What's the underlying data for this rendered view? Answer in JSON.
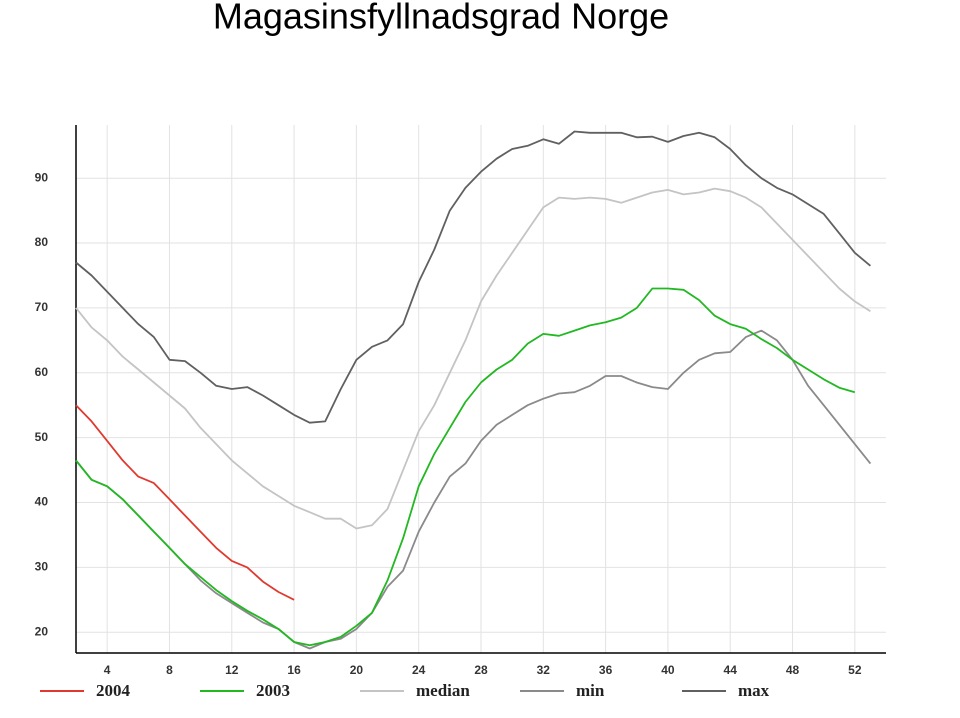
{
  "chart_data": {
    "type": "line",
    "title": "Magasinsfyllnadsgrad Norge",
    "x": [
      2,
      3,
      4,
      5,
      6,
      7,
      8,
      9,
      10,
      11,
      12,
      13,
      14,
      15,
      16,
      17,
      18,
      19,
      20,
      21,
      22,
      23,
      24,
      25,
      26,
      27,
      28,
      29,
      30,
      31,
      32,
      33,
      34,
      35,
      36,
      37,
      38,
      39,
      40,
      41,
      42,
      43,
      44,
      45,
      46,
      47,
      48,
      49,
      50,
      51,
      52,
      53
    ],
    "xlim": [
      2,
      54
    ],
    "xticks": [
      4,
      8,
      12,
      16,
      20,
      24,
      28,
      32,
      36,
      40,
      44,
      48,
      52
    ],
    "ylim": [
      16.8,
      98.2
    ],
    "yticks": [
      20,
      30,
      40,
      50,
      60,
      70,
      80,
      90
    ],
    "grid": true,
    "legend": "bottom",
    "series": [
      {
        "name": "2004",
        "color": "#e03a30",
        "values": [
          55,
          52.5,
          49.5,
          46.5,
          44,
          43,
          40.5,
          38,
          35.5,
          33,
          31,
          30,
          27.8,
          26.2,
          25,
          null,
          null,
          null,
          null,
          null,
          null,
          null,
          null,
          null,
          null,
          null,
          null,
          null,
          null,
          null,
          null,
          null,
          null,
          null,
          null,
          null,
          null,
          null,
          null,
          null,
          null,
          null,
          null,
          null,
          null,
          null,
          null,
          null,
          null,
          null,
          null,
          null
        ]
      },
      {
        "name": "2003",
        "color": "#22b822",
        "values": [
          46.5,
          43.5,
          42.5,
          40.5,
          38,
          35.5,
          33,
          30.5,
          28.5,
          26.5,
          24.8,
          23.3,
          22,
          20.5,
          18.5,
          18,
          18.5,
          19.3,
          21,
          23,
          28,
          34.5,
          42.5,
          47.5,
          51.5,
          55.5,
          58.5,
          60.5,
          62,
          64.5,
          66,
          65.7,
          66.5,
          67.3,
          67.8,
          68.5,
          70,
          73,
          73,
          72.8,
          71.2,
          68.8,
          67.5,
          66.8,
          65.2,
          63.8,
          62,
          60.5,
          59,
          57.7,
          57,
          null
        ]
      },
      {
        "name": "median",
        "color": "#c4c4c4",
        "values": [
          70,
          67,
          65,
          62.5,
          60.5,
          58.5,
          56.5,
          54.5,
          51.5,
          49,
          46.5,
          44.5,
          42.5,
          41,
          39.5,
          38.5,
          37.5,
          37.5,
          36,
          36.5,
          39,
          45,
          51,
          55,
          60,
          65,
          71,
          75,
          78.5,
          82,
          85.5,
          87,
          86.8,
          87,
          86.8,
          86.2,
          87,
          87.8,
          88.2,
          87.5,
          87.8,
          88.4,
          88,
          87,
          85.5,
          83,
          80.5,
          78,
          75.5,
          73,
          71,
          69.5
        ]
      },
      {
        "name": "min",
        "color": "#8a8a8a",
        "values": [
          46.5,
          43.5,
          42.5,
          40.5,
          38,
          35.5,
          33,
          30.5,
          28,
          26,
          24.5,
          23,
          21.5,
          20.5,
          18.5,
          17.5,
          18.5,
          19,
          20.5,
          23,
          27,
          29.5,
          35.5,
          40,
          44,
          46,
          49.5,
          52,
          53.5,
          55,
          56,
          56.8,
          57,
          58,
          59.5,
          59.5,
          58.5,
          57.8,
          57.5,
          60,
          62,
          63,
          63.2,
          65.5,
          66.5,
          65,
          62,
          58,
          55,
          52,
          49,
          46
        ]
      },
      {
        "name": "max",
        "color": "#606060",
        "values": [
          77,
          75,
          72.5,
          70,
          67.5,
          65.5,
          62,
          61.8,
          60,
          58,
          57.5,
          57.8,
          56.5,
          55,
          53.5,
          52.3,
          52.5,
          57.5,
          62,
          64,
          65,
          67.5,
          74,
          79,
          85,
          88.5,
          91,
          93,
          94.5,
          95,
          96,
          95.3,
          97.2,
          97,
          97,
          97,
          96.3,
          96.4,
          95.6,
          96.5,
          97,
          96.3,
          94.5,
          92,
          90,
          88.5,
          87.5,
          86,
          84.5,
          81.5,
          78.5,
          76.5
        ]
      }
    ]
  }
}
